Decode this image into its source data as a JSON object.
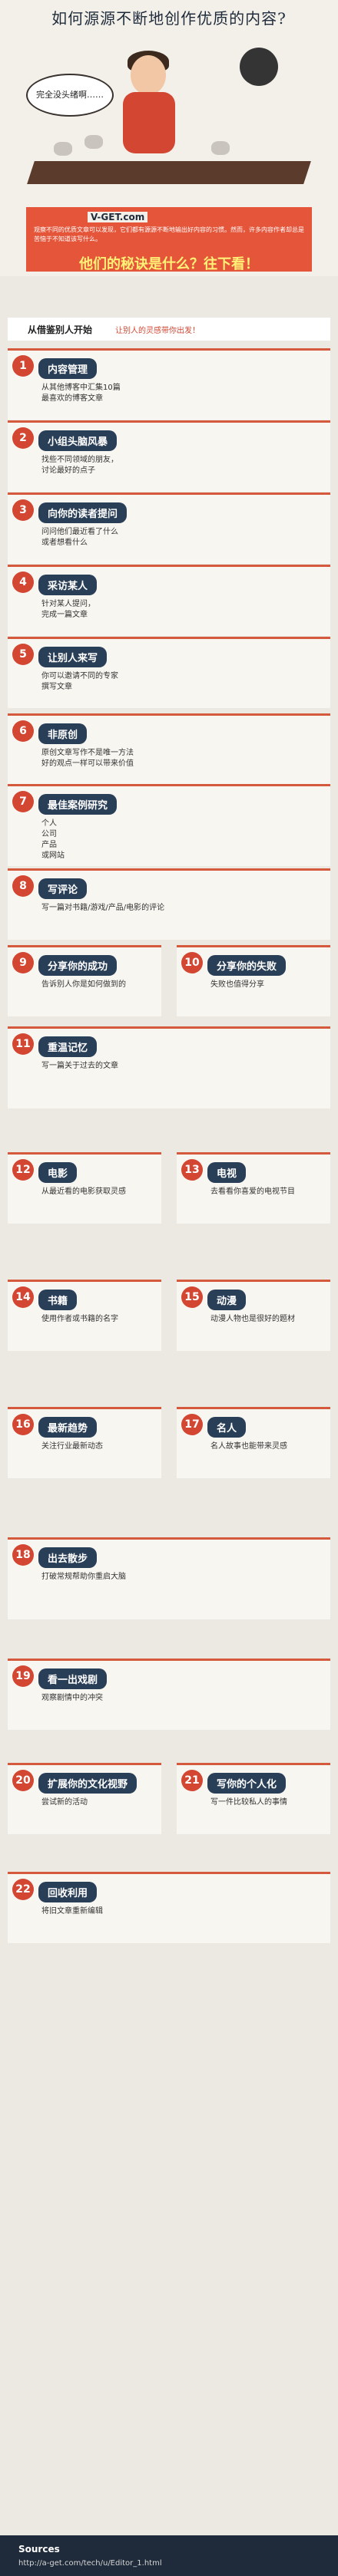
{
  "title": "如何源源不断地创作优质的内容?",
  "speech": "完全没头绪啊……",
  "brand": "V-GET.com",
  "intro": "观察不同的优质文章可以发现，它们都有源源不断地输出好内容的习惯。然而，许多内容作者却总是苦恼于不知道该写什么。",
  "question": "他们的秘诀是什么？往下看！",
  "topic": {
    "lead": "从借鉴别人开始",
    "sub": "让别人的灵感带你出发！"
  },
  "sections": [
    {
      "num": "1",
      "title": "内容管理",
      "lines": [
        "从其他博客中汇集10篇",
        "最喜欢的博客文章"
      ]
    },
    {
      "num": "2",
      "title": "小组头脑风暴",
      "lines": [
        "找些不同领域的朋友，",
        "讨论最好的点子"
      ]
    },
    {
      "num": "3",
      "title": "向你的读者提问",
      "lines": [
        "问问他们最近看了什么",
        "或者想看什么"
      ]
    },
    {
      "num": "4",
      "title": "采访某人",
      "lines": [
        "针对某人提问，",
        "完成一篇文章"
      ]
    },
    {
      "num": "5",
      "title": "让别人来写",
      "lines": [
        "你可以邀请不同的专家",
        "撰写文章"
      ]
    },
    {
      "num": "6",
      "title": "非原创",
      "lines": [
        "原创文章写作不是唯一方法",
        "好的观点一样可以带来价值"
      ]
    },
    {
      "num": "7",
      "title": "最佳案例研究",
      "lines": [
        "个人",
        "公司",
        "产品",
        "或网站"
      ]
    },
    {
      "num": "8",
      "title": "写评论",
      "lines": [
        "写一篇对书籍/游戏/产品/电影的评论"
      ]
    },
    {
      "num": "9",
      "title": "分享你的成功",
      "lines": [
        "告诉别人你是如何做到的"
      ]
    },
    {
      "num": "10",
      "title": "分享你的失败",
      "lines": [
        "失败也值得分享"
      ]
    },
    {
      "num": "11",
      "title": "重温记忆",
      "lines": [
        "写一篇关于过去的文章"
      ]
    },
    {
      "num": "12",
      "title": "电影",
      "lines": [
        "从最近看的电影获取灵感"
      ]
    },
    {
      "num": "13",
      "title": "电视",
      "lines": [
        "去看看你喜爱的电视节目"
      ]
    },
    {
      "num": "14",
      "title": "书籍",
      "lines": [
        "使用作者或书籍的名字"
      ]
    },
    {
      "num": "15",
      "title": "动漫",
      "lines": [
        "动漫人物也是很好的题材"
      ]
    },
    {
      "num": "16",
      "title": "最新趋势",
      "lines": [
        "关注行业最新动态"
      ]
    },
    {
      "num": "17",
      "title": "名人",
      "lines": [
        "名人故事也能带来灵感"
      ]
    },
    {
      "num": "18",
      "title": "出去散步",
      "lines": [
        "打破常规帮助你重启大脑"
      ]
    },
    {
      "num": "19",
      "title": "看一出戏剧",
      "lines": [
        "观察剧情中的冲突"
      ]
    },
    {
      "num": "20",
      "title": "扩展你的文化视野",
      "lines": [
        "尝试新的活动"
      ]
    },
    {
      "num": "21",
      "title": "写你的个人化",
      "lines": [
        "写一件比较私人的事情"
      ]
    },
    {
      "num": "22",
      "title": "回收利用",
      "lines": [
        "将旧文章重新编辑"
      ]
    }
  ],
  "footer": {
    "label": "Sources",
    "url": "http://a-get.com/tech/u/Editor_1.html"
  },
  "colors": {
    "red": "#d24632",
    "navy": "#293e57",
    "yellow": "#f1c21b"
  }
}
